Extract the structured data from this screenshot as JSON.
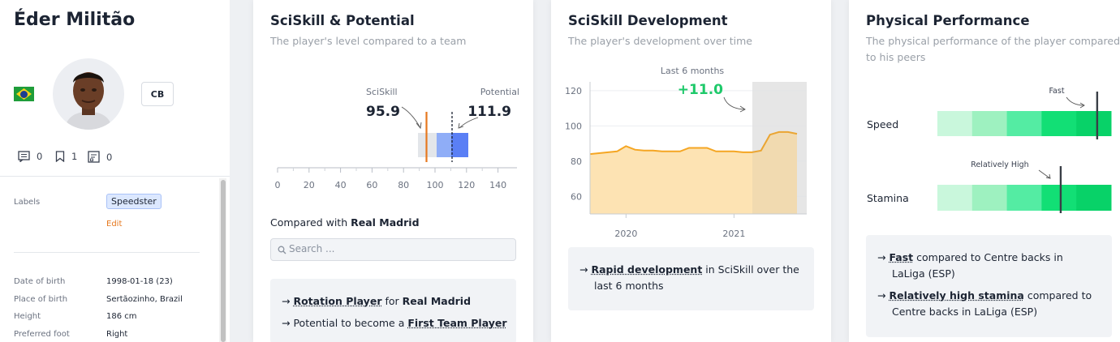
{
  "player": {
    "name": "Éder Militão",
    "position": "CB",
    "notes_count": "0",
    "bookmarks_count": "1",
    "reports_count": "0"
  },
  "profile": {
    "labels_title": "Labels",
    "label_chip": "Speedster",
    "edit_label": "Edit",
    "rows": [
      {
        "label": "Date of birth",
        "value": "1998-01-18 (23)"
      },
      {
        "label": "Place of birth",
        "value": "Sertãozinho, Brazil"
      },
      {
        "label": "Height",
        "value": "186 cm"
      },
      {
        "label": "Preferred foot",
        "value": "Right"
      }
    ]
  },
  "sciskill": {
    "title": "SciSkill & Potential",
    "subtitle": "The player's level compared to a team",
    "sciskill_label": "SciSkill",
    "sciskill_value": "95.9",
    "potential_label": "Potential",
    "potential_value": "111.9",
    "axis_ticks": [
      "0",
      "20",
      "40",
      "60",
      "80",
      "100",
      "120",
      "140"
    ],
    "compared_prefix": "Compared with",
    "compared_team": "Real Madrid",
    "search_placeholder": "Search ...",
    "insight1_arrow": "→",
    "insight1_link": "Rotation Player",
    "insight1_mid": "for",
    "insight1_team": "Real Madrid",
    "insight2_arrow": "→",
    "insight2_text": "Potential to become a",
    "insight2_link": "First Team Player"
  },
  "development": {
    "title": "SciSkill Development",
    "subtitle": "The player's development over time",
    "highlight_label": "Last 6 months",
    "delta": "+11.0",
    "insight_arrow": "→",
    "insight_link": "Rapid development",
    "insight_text1": "in SciSkill over the",
    "insight_text2": "last 6 months"
  },
  "physical": {
    "title": "Physical Performance",
    "subtitle_line1": "The physical performance of the player compared",
    "subtitle_line2": "to his peers",
    "speed_label": "Speed",
    "speed_annotation": "Fast",
    "stamina_label": "Stamina",
    "stamina_annotation": "Relatively High",
    "insight1_arrow": "→",
    "insight1_link": "Fast",
    "insight1_text1": "compared to Centre backs in",
    "insight1_text2": "LaLiga (ESP)",
    "insight2_arrow": "→",
    "insight2_link": "Relatively high stamina",
    "insight2_text1": "compared to",
    "insight2_text2": "Centre backs in LaLiga (ESP)",
    "speed_level": 0.92,
    "stamina_level": 0.71
  },
  "colors": {
    "orange": "#e6781e",
    "blue": "#5a7ff5",
    "green_delta": "#1ec96a",
    "area_fill": "#fde3b3",
    "line": "#f5a623"
  },
  "chart_data": {
    "type": "area",
    "x": [
      "2019-09",
      "2019-10",
      "2019-11",
      "2019-12",
      "2020-01",
      "2020-02",
      "2020-03",
      "2020-04",
      "2020-05",
      "2020-06",
      "2020-07",
      "2020-08",
      "2020-09",
      "2020-10",
      "2020-11",
      "2020-12",
      "2021-01",
      "2021-02",
      "2021-03",
      "2021-04",
      "2021-05",
      "2021-06",
      "2021-07",
      "2021-08"
    ],
    "series": [
      {
        "values": [
          84,
          84.5,
          85,
          85.5,
          88.5,
          86.5,
          86,
          86,
          85.5,
          85.5,
          85.5,
          87.5,
          87.5,
          87.5,
          85.5,
          85.5,
          85.5,
          85,
          85,
          86,
          95,
          96.5,
          96.5,
          95.5
        ]
      }
    ],
    "ylim": [
      50,
      125
    ],
    "yticks": [
      60,
      80,
      100,
      120
    ],
    "xticks": [
      "2020",
      "2021"
    ],
    "grid": true
  }
}
